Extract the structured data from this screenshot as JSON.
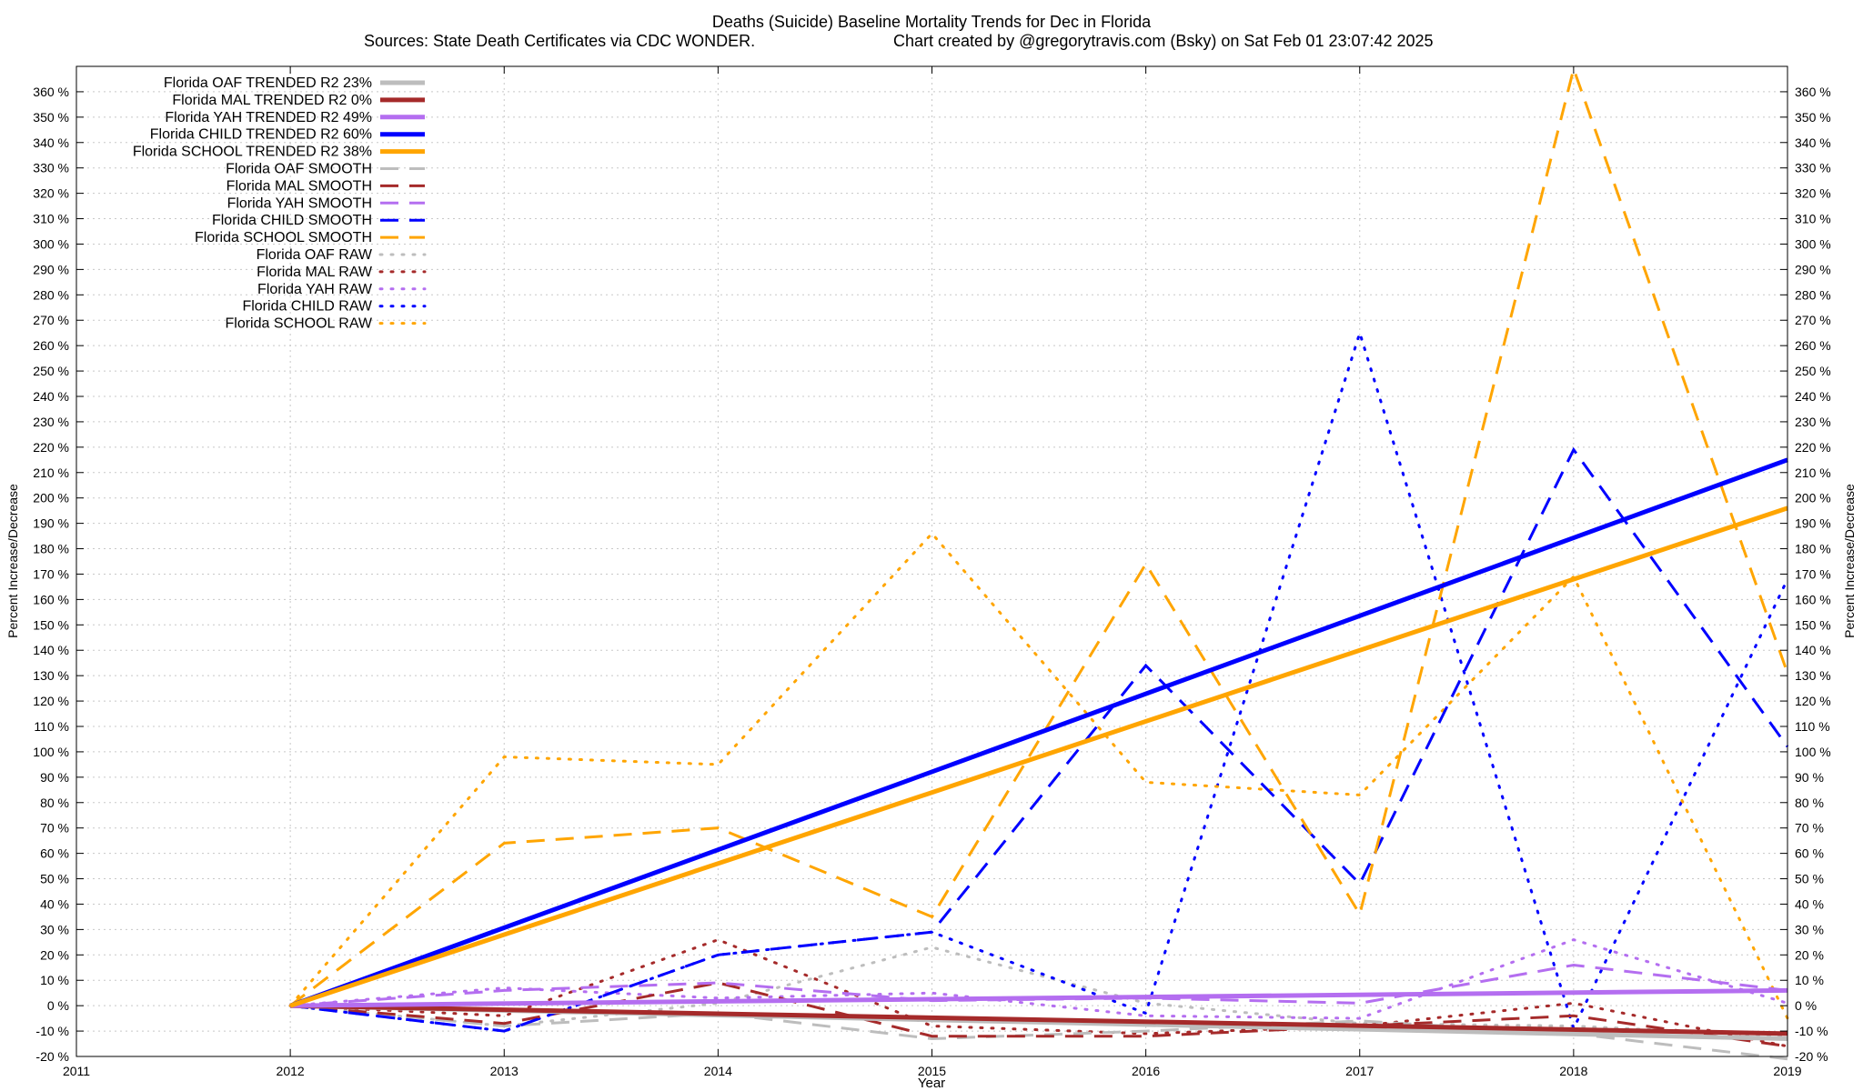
{
  "chart_data": {
    "type": "line",
    "title": "Deaths (Suicide)  Baseline Mortality Trends for Dec in Florida",
    "subtitle_left": "Sources: State Death Certificates via CDC WONDER.",
    "subtitle_right": "Chart created by @gregorytravis.com (Bsky) on Sat Feb 01 23:07:42 2025",
    "xlabel": "Year",
    "ylabel": "Percent Increase/Decrease",
    "y2label": "Percent Increase/Decrease",
    "xlim": [
      2011,
      2019
    ],
    "ylim": [
      -20,
      370
    ],
    "x_ticks": [
      2011,
      2012,
      2013,
      2014,
      2015,
      2016,
      2017,
      2018,
      2019
    ],
    "y_ticks": [
      -20,
      -10,
      0,
      10,
      20,
      30,
      40,
      50,
      60,
      70,
      80,
      90,
      100,
      110,
      120,
      130,
      140,
      150,
      160,
      170,
      180,
      190,
      200,
      210,
      220,
      230,
      240,
      250,
      260,
      270,
      280,
      290,
      300,
      310,
      320,
      330,
      340,
      350,
      360
    ],
    "y_tick_suffix": " %",
    "grid": true,
    "legend_position": "top-left",
    "colors": {
      "OAF": "#bdbdbd",
      "MAL": "#a52a2a",
      "YAH": "#b46ef0",
      "CHILD": "#0000ff",
      "SCHOOL": "#ffa500"
    },
    "series": [
      {
        "name": "Florida OAF TRENDED R2  23%",
        "group": "OAF",
        "style": "trend",
        "x": [
          2012,
          2019
        ],
        "y": [
          0,
          -13
        ]
      },
      {
        "name": "Florida MAL TRENDED R2   0%",
        "group": "MAL",
        "style": "trend",
        "x": [
          2012,
          2019
        ],
        "y": [
          0,
          -11
        ]
      },
      {
        "name": "Florida YAH TRENDED R2  49%",
        "group": "YAH",
        "style": "trend",
        "x": [
          2012,
          2019
        ],
        "y": [
          0,
          6
        ]
      },
      {
        "name": "Florida CHILD TRENDED R2  60%",
        "group": "CHILD",
        "style": "trend",
        "x": [
          2012,
          2019
        ],
        "y": [
          0,
          215
        ]
      },
      {
        "name": "Florida SCHOOL TRENDED R2  38%",
        "group": "SCHOOL",
        "style": "trend",
        "x": [
          2012,
          2019
        ],
        "y": [
          0,
          196
        ]
      },
      {
        "name": "Florida OAF SMOOTH",
        "group": "OAF",
        "style": "smooth",
        "x": [
          2012,
          2013,
          2014,
          2015,
          2016,
          2017,
          2018,
          2019
        ],
        "y": [
          0,
          -8,
          -3,
          -13,
          -10,
          -6,
          -11,
          -21
        ]
      },
      {
        "name": "Florida MAL SMOOTH",
        "group": "MAL",
        "style": "smooth",
        "x": [
          2012,
          2013,
          2014,
          2015,
          2016,
          2017,
          2018,
          2019
        ],
        "y": [
          0,
          -7,
          9,
          -12,
          -12,
          -8,
          -4,
          -16
        ]
      },
      {
        "name": "Florida YAH SMOOTH",
        "group": "YAH",
        "style": "smooth",
        "x": [
          2012,
          2013,
          2014,
          2015,
          2016,
          2017,
          2018,
          2019
        ],
        "y": [
          0,
          6,
          9,
          2,
          3,
          1,
          16,
          6
        ]
      },
      {
        "name": "Florida CHILD SMOOTH",
        "group": "CHILD",
        "style": "smooth",
        "x": [
          2012,
          2013,
          2014,
          2015,
          2016,
          2017,
          2018,
          2019
        ],
        "y": [
          0,
          -10,
          20,
          29,
          134,
          48,
          219,
          102
        ]
      },
      {
        "name": "Florida SCHOOL SMOOTH",
        "group": "SCHOOL",
        "style": "smooth",
        "x": [
          2012,
          2013,
          2014,
          2015,
          2016,
          2017,
          2018,
          2019
        ],
        "y": [
          0,
          64,
          70,
          35,
          174,
          36,
          369,
          131
        ]
      },
      {
        "name": "Florida OAF RAW",
        "group": "OAF",
        "style": "raw",
        "x": [
          2012,
          2013,
          2014,
          2015,
          2016,
          2017,
          2018,
          2019
        ],
        "y": [
          0,
          -8,
          1,
          23,
          1,
          -7,
          -8,
          -12
        ]
      },
      {
        "name": "Florida MAL RAW",
        "group": "MAL",
        "style": "raw",
        "x": [
          2012,
          2013,
          2014,
          2015,
          2016,
          2017,
          2018,
          2019
        ],
        "y": [
          0,
          -4,
          26,
          -8,
          -11,
          -8,
          1,
          -16
        ]
      },
      {
        "name": "Florida YAH RAW",
        "group": "YAH",
        "style": "raw",
        "x": [
          2012,
          2013,
          2014,
          2015,
          2016,
          2017,
          2018,
          2019
        ],
        "y": [
          0,
          7,
          3,
          5,
          -4,
          -5,
          26,
          1
        ]
      },
      {
        "name": "Florida CHILD RAW",
        "group": "CHILD",
        "style": "raw",
        "x": [
          2012,
          2013,
          2014,
          2015,
          2016,
          2017,
          2018,
          2019
        ],
        "y": [
          0,
          -10,
          20,
          29,
          -3,
          265,
          -9,
          168
        ]
      },
      {
        "name": "Florida SCHOOL RAW",
        "group": "SCHOOL",
        "style": "raw",
        "x": [
          2012,
          2013,
          2014,
          2015,
          2016,
          2017,
          2018,
          2019
        ],
        "y": [
          0,
          98,
          95,
          186,
          88,
          83,
          169,
          -5
        ]
      }
    ]
  }
}
